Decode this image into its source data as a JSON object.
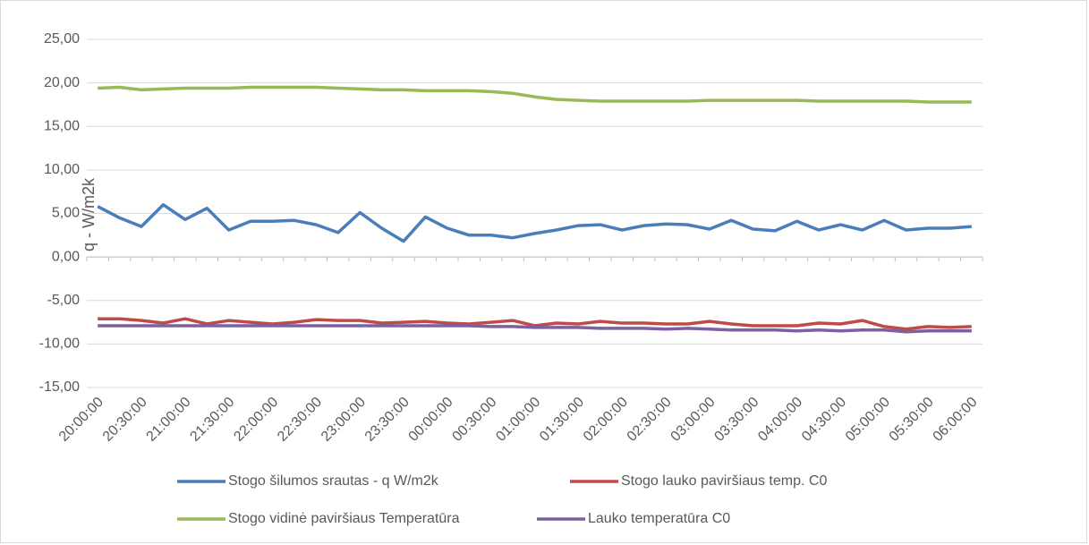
{
  "chart_data": {
    "type": "line",
    "y_label": "q - W/m2k",
    "categories": [
      "20:00:00",
      null,
      "20:30:00",
      null,
      "21:00:00",
      null,
      "21:30:00",
      null,
      "22:00:00",
      null,
      "22:30:00",
      null,
      "23:00:00",
      null,
      "23:30:00",
      null,
      "00:00:00",
      null,
      "00:30:00",
      null,
      "01:00:00",
      null,
      "01:30:00",
      null,
      "02:00:00",
      null,
      "02:30:00",
      null,
      "03:00:00",
      null,
      "03:30:00",
      null,
      "04:00:00",
      null,
      "04:30:00",
      null,
      "05:00:00",
      null,
      "05:30:00",
      null,
      "06:00:00"
    ],
    "series": [
      {
        "name": "Stogo šilumos srautas - q W/m2k",
        "color": "#4a7ebb",
        "values": [
          5.8,
          4.5,
          3.5,
          6.0,
          4.3,
          5.6,
          3.1,
          4.1,
          4.1,
          4.2,
          3.7,
          2.8,
          5.1,
          3.3,
          1.8,
          4.6,
          3.3,
          2.5,
          2.5,
          2.2,
          2.7,
          3.1,
          3.6,
          3.7,
          3.1,
          3.6,
          3.8,
          3.7,
          3.2,
          4.2,
          3.2,
          3.0,
          4.1,
          3.1,
          3.7,
          3.1,
          4.2,
          3.1,
          3.3,
          3.3,
          3.5
        ]
      },
      {
        "name": "Stogo lauko paviršiaus temp. C0",
        "color": "#be4b48",
        "values": [
          -7.1,
          -7.1,
          -7.3,
          -7.6,
          -7.1,
          -7.7,
          -7.3,
          -7.5,
          -7.7,
          -7.5,
          -7.2,
          -7.3,
          -7.3,
          -7.6,
          -7.5,
          -7.4,
          -7.6,
          -7.7,
          -7.5,
          -7.3,
          -7.9,
          -7.6,
          -7.7,
          -7.4,
          -7.6,
          -7.6,
          -7.7,
          -7.7,
          -7.4,
          -7.7,
          -7.9,
          -7.9,
          -7.9,
          -7.6,
          -7.7,
          -7.3,
          -8.0,
          -8.3,
          -8.0,
          -8.1,
          -8.0
        ]
      },
      {
        "name": "Stogo vidinė paviršiaus  Temperatūra",
        "color": "#98b954",
        "values": [
          19.4,
          19.5,
          19.2,
          19.3,
          19.4,
          19.4,
          19.4,
          19.5,
          19.5,
          19.5,
          19.5,
          19.4,
          19.3,
          19.2,
          19.2,
          19.1,
          19.1,
          19.1,
          19.0,
          18.8,
          18.4,
          18.1,
          18.0,
          17.9,
          17.9,
          17.9,
          17.9,
          17.9,
          18.0,
          18.0,
          18.0,
          18.0,
          18.0,
          17.9,
          17.9,
          17.9,
          17.9,
          17.9,
          17.8,
          17.8,
          17.8
        ]
      },
      {
        "name": "Lauko temperatūra C0",
        "color": "#7d60a0",
        "values": [
          -7.9,
          -7.9,
          -7.9,
          -7.9,
          -7.9,
          -7.9,
          -7.9,
          -7.9,
          -7.9,
          -7.9,
          -7.9,
          -7.9,
          -7.9,
          -7.9,
          -7.9,
          -7.9,
          -7.9,
          -7.9,
          -8.0,
          -8.0,
          -8.1,
          -8.1,
          -8.1,
          -8.2,
          -8.2,
          -8.2,
          -8.3,
          -8.2,
          -8.3,
          -8.4,
          -8.4,
          -8.4,
          -8.5,
          -8.4,
          -8.5,
          -8.4,
          -8.4,
          -8.6,
          -8.5,
          -8.5,
          -8.5
        ]
      }
    ],
    "ylim": [
      -15,
      25
    ],
    "yticks": [
      {
        "value": -15,
        "label": "-15,00"
      },
      {
        "value": -10,
        "label": "-10,00"
      },
      {
        "value": -5,
        "label": "-5,00"
      },
      {
        "value": 0,
        "label": "0,00"
      },
      {
        "value": 5,
        "label": "5,00"
      },
      {
        "value": 10,
        "label": "10,00"
      },
      {
        "value": 15,
        "label": "15,00"
      },
      {
        "value": 20,
        "label": "20,00"
      },
      {
        "value": 25,
        "label": "25,00"
      }
    ],
    "grid": true
  }
}
